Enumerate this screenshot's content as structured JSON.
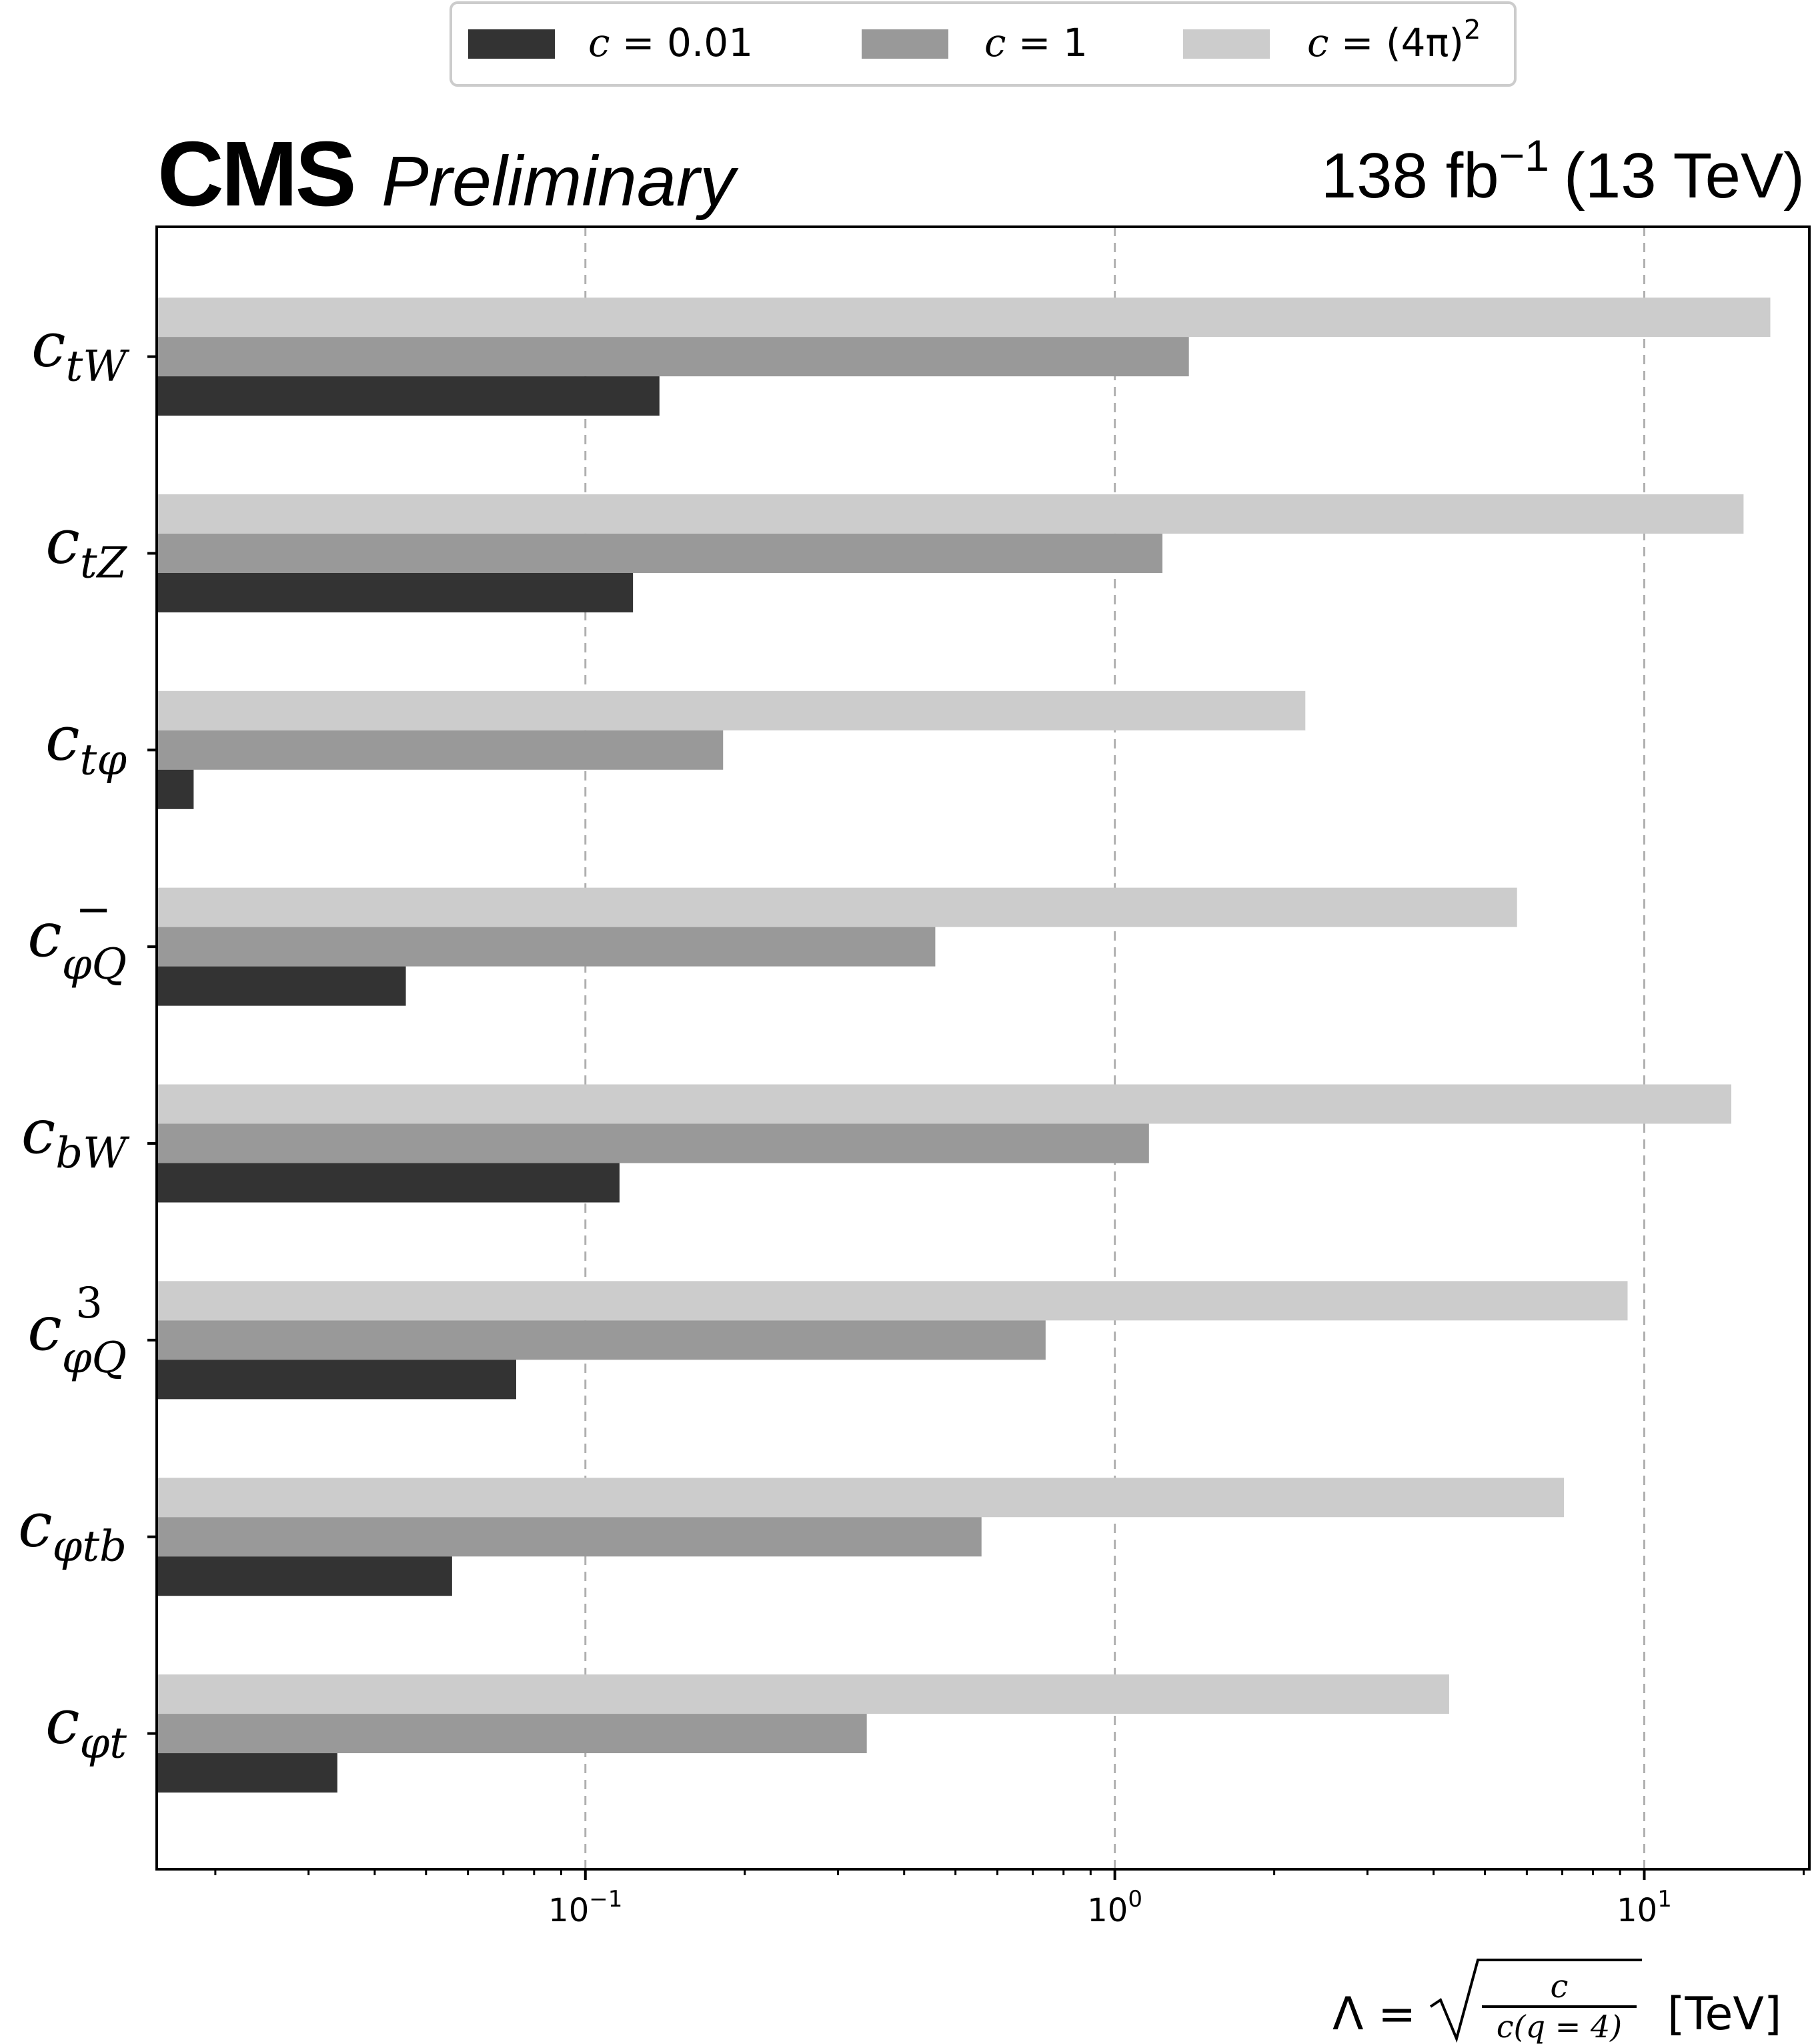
{
  "header": {
    "experiment": "CMS",
    "status": "Preliminary",
    "lumi_value": "138 fb",
    "lumi_exponent": "−1",
    "energy": "(13 TeV)"
  },
  "colors": {
    "c_0p01": "#333333",
    "c_1": "#999999",
    "c_4pi2": "#cccccc",
    "grid": "#b0b0b0",
    "frame": "#000000"
  },
  "legend": {
    "position": "top-center",
    "entries": [
      {
        "var": "c",
        "rest": " = 0.01",
        "sup": ""
      },
      {
        "var": "c",
        "rest": " = 1",
        "sup": ""
      },
      {
        "var": "c",
        "rest": " = (4π)",
        "sup": "2"
      }
    ]
  },
  "chart_data": {
    "type": "bar",
    "orientation": "horizontal",
    "xscale": "log",
    "xlim": [
      0.0155,
      20.5
    ],
    "grid": "x-major dashed",
    "categories": [
      {
        "base": "c",
        "sub": "tW",
        "sup": ""
      },
      {
        "base": "c",
        "sub": "tZ",
        "sup": ""
      },
      {
        "base": "c",
        "sub": "tφ",
        "sup": ""
      },
      {
        "base": "c",
        "sub": "φQ",
        "sup": "−"
      },
      {
        "base": "c",
        "sub": "bW",
        "sup": ""
      },
      {
        "base": "c",
        "sub": "φQ",
        "sup": "3"
      },
      {
        "base": "c",
        "sub": "φtb",
        "sup": ""
      },
      {
        "base": "c",
        "sub": "φt",
        "sup": ""
      }
    ],
    "series": [
      {
        "name": "c = 0.01",
        "values": [
          0.138,
          0.123,
          0.0182,
          0.0458,
          0.116,
          0.074,
          0.056,
          0.034
        ]
      },
      {
        "name": "c = 1",
        "values": [
          1.38,
          1.23,
          0.182,
          0.458,
          1.16,
          0.74,
          0.56,
          0.34
        ]
      },
      {
        "name": "c = (4π)^2",
        "values": [
          17.3,
          15.4,
          2.29,
          5.75,
          14.6,
          9.3,
          7.05,
          4.28
        ]
      }
    ],
    "xticks": [
      {
        "value": 0.1,
        "base": "10",
        "exp": "−1"
      },
      {
        "value": 1,
        "base": "10",
        "exp": "0"
      },
      {
        "value": 10,
        "base": "10",
        "exp": "1"
      }
    ],
    "xlabel": {
      "lhs": "Λ = ",
      "num": "c",
      "den": "c(q = 4)",
      "unit": "[TeV]"
    }
  }
}
